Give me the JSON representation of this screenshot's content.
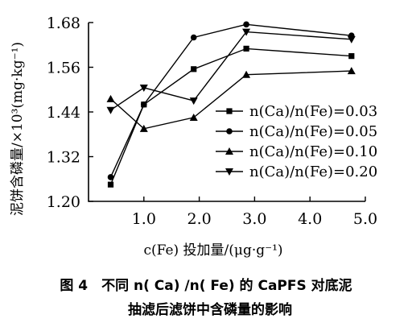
{
  "chart_data": {
    "type": "line",
    "title": "",
    "xlabel": "c(Fe) 投加量/(μg·g⁻¹)",
    "ylabel": "泥饼含磷量/×10³(mg·kg⁻¹)",
    "xlim": [
      0,
      5.0
    ],
    "ylim": [
      1.2,
      1.68
    ],
    "x_ticks": [
      "1.0",
      "2.0",
      "3.0",
      "4.0",
      "5.0"
    ],
    "y_ticks": [
      "1.20",
      "1.32",
      "1.44",
      "1.56",
      "1.68"
    ],
    "grid": false,
    "legend_position": "right",
    "series": [
      {
        "name": "n(Ca)/n(Fe)=0.03",
        "marker": "square",
        "x": [
          0.4,
          1.0,
          1.9,
          2.85,
          4.75
        ],
        "y": [
          1.245,
          1.46,
          1.555,
          1.61,
          1.59
        ]
      },
      {
        "name": "n(Ca)/n(Fe)=0.05",
        "marker": "circle",
        "x": [
          0.4,
          1.0,
          1.9,
          2.85,
          4.75
        ],
        "y": [
          1.265,
          1.46,
          1.64,
          1.675,
          1.645
        ]
      },
      {
        "name": "n(Ca)/n(Fe)=0.10",
        "marker": "triangle-up",
        "x": [
          0.4,
          1.0,
          1.9,
          2.85,
          4.75
        ],
        "y": [
          1.475,
          1.395,
          1.425,
          1.54,
          1.55
        ]
      },
      {
        "name": "n(Ca)/n(Fe)=0.20",
        "marker": "triangle-down",
        "x": [
          0.4,
          1.0,
          1.9,
          2.85,
          4.75
        ],
        "y": [
          1.445,
          1.505,
          1.47,
          1.655,
          1.635
        ]
      }
    ]
  },
  "caption": {
    "line1": "图 4　不同 n( Ca) /n( Fe) 的 CaPFS 对底泥",
    "line2": "抽滤后滤饼中含磷量的影响"
  }
}
